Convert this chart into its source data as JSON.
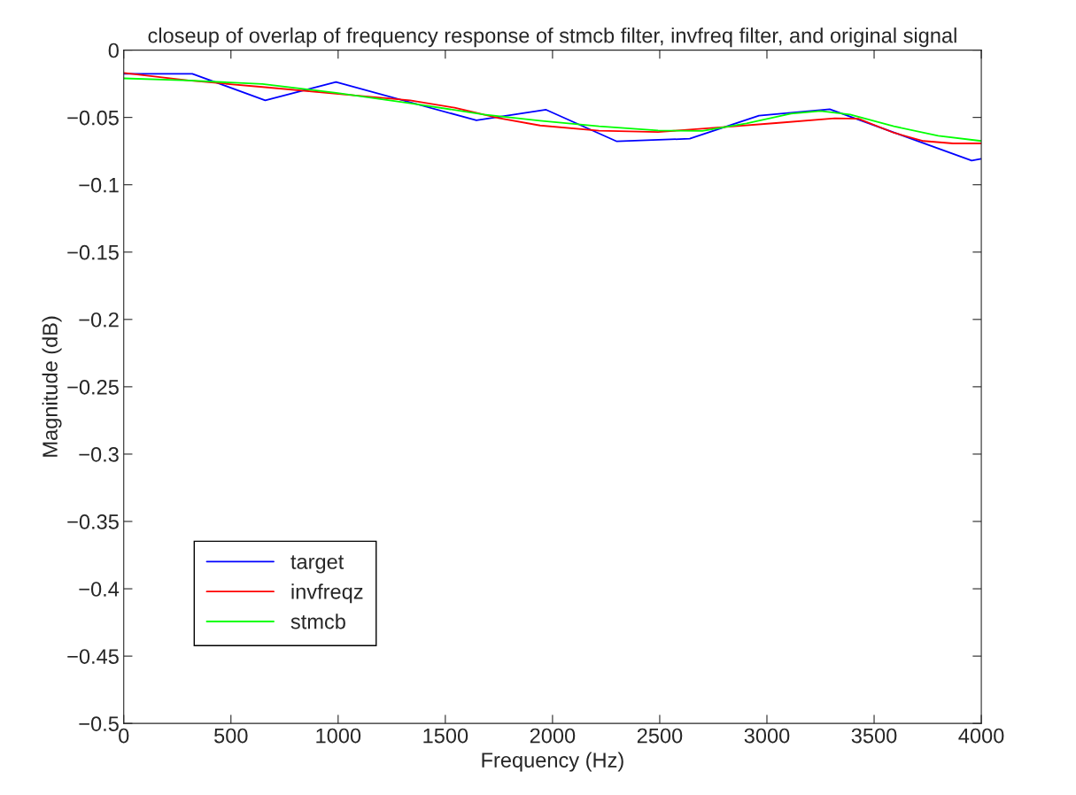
{
  "chart_data": {
    "type": "line",
    "title": "closeup of overlap of frequency response of stmcb filter, invfreq filter, and original signal",
    "xlabel": "Frequency (Hz)",
    "ylabel": "Magnitude (dB)",
    "xlim": [
      0,
      4000
    ],
    "xticks": [
      0,
      500,
      1000,
      1500,
      2000,
      2500,
      3000,
      3500,
      4000
    ],
    "ylim": [
      -0.5,
      0
    ],
    "yticks": [
      {
        "value": -0.5,
        "label": "−0.5"
      },
      {
        "value": -0.45,
        "label": "−0.45"
      },
      {
        "value": -0.4,
        "label": "−0.4"
      },
      {
        "value": -0.35,
        "label": "−0.35"
      },
      {
        "value": -0.3,
        "label": "−0.3"
      },
      {
        "value": -0.25,
        "label": "−0.25"
      },
      {
        "value": -0.2,
        "label": "−0.2"
      },
      {
        "value": -0.15,
        "label": "−0.15"
      },
      {
        "value": -0.1,
        "label": "−0.1"
      },
      {
        "value": -0.05,
        "label": "−0.05"
      },
      {
        "value": 0,
        "label": "0"
      }
    ],
    "grid": false,
    "legend": "bottom left",
    "line_style": "solid",
    "marker": "none",
    "series": [
      {
        "name": "target",
        "color": "#0000ff",
        "x": [
          0,
          320,
          660,
          990,
          1645,
          1970,
          2300,
          2640,
          2963,
          3293,
          3955,
          4000
        ],
        "values": [
          -0.0176,
          -0.0176,
          -0.0373,
          -0.0237,
          -0.0522,
          -0.0443,
          -0.0678,
          -0.0658,
          -0.0487,
          -0.0439,
          -0.082,
          -0.0807
        ]
      },
      {
        "name": "invfreqz",
        "color": "#ff0000",
        "x": [
          0,
          303,
          647,
          991,
          1336,
          1543,
          1749,
          1942,
          2217,
          2492,
          2767,
          3042,
          3317,
          3427,
          3592,
          3730,
          3868,
          4000
        ],
        "values": [
          -0.0169,
          -0.0226,
          -0.0274,
          -0.0324,
          -0.0373,
          -0.0428,
          -0.0505,
          -0.056,
          -0.0599,
          -0.0608,
          -0.0575,
          -0.0542,
          -0.0507,
          -0.051,
          -0.0614,
          -0.0675,
          -0.0693,
          -0.0693
        ]
      },
      {
        "name": "stmcb",
        "color": "#00ff00",
        "x": [
          0,
          303,
          647,
          991,
          1336,
          1680,
          1942,
          2217,
          2492,
          2699,
          2905,
          3112,
          3250,
          3388,
          3592,
          3799,
          4000
        ],
        "values": [
          -0.021,
          -0.0226,
          -0.0252,
          -0.0318,
          -0.0395,
          -0.0478,
          -0.0524,
          -0.0566,
          -0.0597,
          -0.06,
          -0.0544,
          -0.0472,
          -0.0452,
          -0.0478,
          -0.0566,
          -0.0636,
          -0.0675
        ]
      }
    ]
  }
}
